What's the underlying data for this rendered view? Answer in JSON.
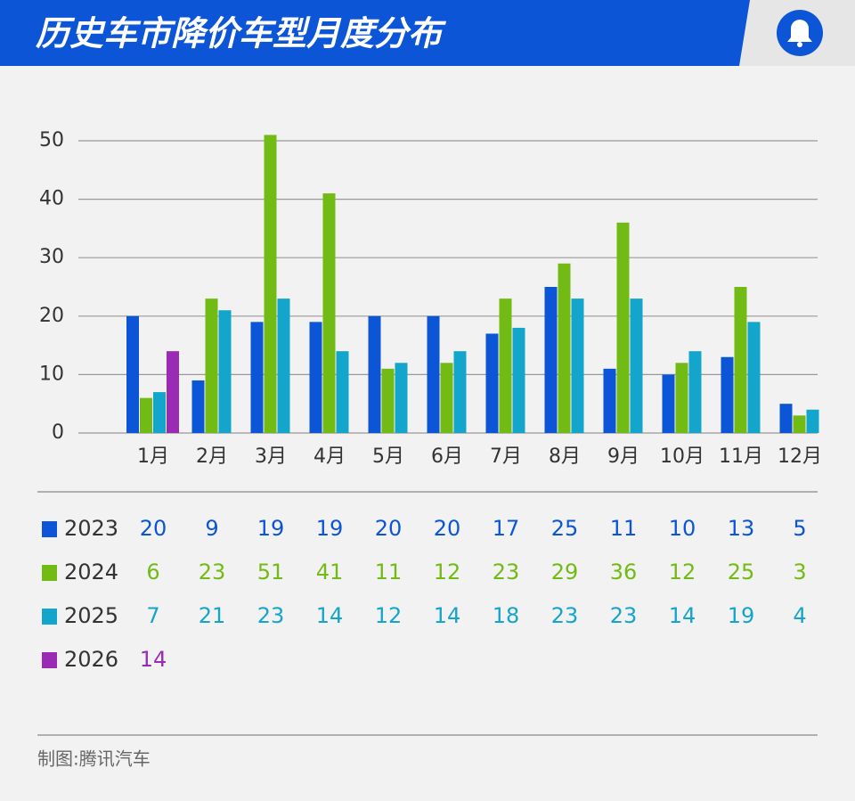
{
  "chart_data": {
    "type": "bar",
    "title": "历史车市降价车型月度分布",
    "credit": "制图:腾讯汽车",
    "categories": [
      "1月",
      "2月",
      "3月",
      "4月",
      "5月",
      "6月",
      "7月",
      "8月",
      "9月",
      "10月",
      "11月",
      "12月"
    ],
    "series": [
      {
        "name": "2023",
        "color": "#0b55d6",
        "values": [
          20,
          9,
          19,
          19,
          20,
          20,
          17,
          25,
          11,
          10,
          13,
          5
        ]
      },
      {
        "name": "2024",
        "color": "#72bb14",
        "values": [
          6,
          23,
          51,
          41,
          11,
          12,
          23,
          29,
          36,
          12,
          25,
          3
        ]
      },
      {
        "name": "2025",
        "color": "#14a5cc",
        "values": [
          7,
          21,
          23,
          14,
          12,
          14,
          18,
          23,
          23,
          14,
          19,
          4
        ]
      },
      {
        "name": "2026",
        "color": "#9a2bb4",
        "values": [
          14,
          null,
          null,
          null,
          null,
          null,
          null,
          null,
          null,
          null,
          null,
          null
        ]
      }
    ],
    "ylim": [
      0,
      52
    ],
    "yticks": [
      0,
      10,
      20,
      30,
      40,
      50
    ],
    "grid": true
  }
}
